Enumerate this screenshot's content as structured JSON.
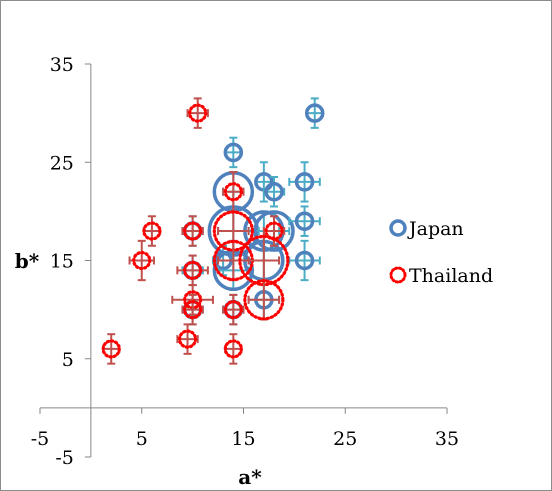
{
  "chart_data": {
    "type": "scatter",
    "xlabel": "a*",
    "ylabel": "b*",
    "xlim": [
      -5,
      35
    ],
    "ylim": [
      -5,
      35
    ],
    "x_ticks": [
      -5,
      5,
      15,
      25,
      35
    ],
    "y_ticks": [
      -5,
      5,
      15,
      25,
      35
    ],
    "x_tick_labels": [
      "-5",
      "5",
      "15",
      "25",
      "35"
    ],
    "y_tick_labels": [
      "-5",
      "5",
      "15",
      "25",
      "35"
    ],
    "grid": false,
    "legend_position": "right",
    "series": [
      {
        "name": "Japan",
        "marker": "circle",
        "line_style": "solid",
        "color": "#4f81bd",
        "errorbar_color": "#4bacc6",
        "points": [
          {
            "x": 22,
            "y": 30,
            "size": 1,
            "xerr": 0.8,
            "yerr": 1.5
          },
          {
            "x": 14,
            "y": 26,
            "size": 1,
            "xerr": 0.8,
            "yerr": 1.5
          },
          {
            "x": 17,
            "y": 23,
            "size": 1,
            "xerr": 0.8,
            "yerr": 2
          },
          {
            "x": 21,
            "y": 23,
            "size": 1,
            "xerr": 1.5,
            "yerr": 2
          },
          {
            "x": 14,
            "y": 22,
            "size": 2,
            "xerr": 1,
            "yerr": 2
          },
          {
            "x": 18,
            "y": 22,
            "size": 1,
            "xerr": 1,
            "yerr": 1.5
          },
          {
            "x": 10,
            "y": 18,
            "size": 1,
            "xerr": 1,
            "yerr": 1.5
          },
          {
            "x": 14,
            "y": 18,
            "size": 3,
            "xerr": 1.5,
            "yerr": 2
          },
          {
            "x": 17,
            "y": 18,
            "size": 2,
            "xerr": 1.5,
            "yerr": 2
          },
          {
            "x": 18,
            "y": 18,
            "size": 2,
            "xerr": 1.5,
            "yerr": 2
          },
          {
            "x": 21,
            "y": 19,
            "size": 1,
            "xerr": 1.5,
            "yerr": 1.5
          },
          {
            "x": 10,
            "y": 14,
            "size": 1,
            "xerr": 1,
            "yerr": 1.5
          },
          {
            "x": 13,
            "y": 15,
            "size": 1,
            "xerr": 1,
            "yerr": 1.5
          },
          {
            "x": 14,
            "y": 14,
            "size": 2,
            "xerr": 1.5,
            "yerr": 2
          },
          {
            "x": 17,
            "y": 15,
            "size": 2,
            "xerr": 1.5,
            "yerr": 2
          },
          {
            "x": 21,
            "y": 15,
            "size": 1,
            "xerr": 1.5,
            "yerr": 2
          },
          {
            "x": 10,
            "y": 10,
            "size": 1,
            "xerr": 1,
            "yerr": 1.5
          },
          {
            "x": 14,
            "y": 10,
            "size": 1,
            "xerr": 1,
            "yerr": 1.5
          },
          {
            "x": 17,
            "y": 11,
            "size": 1,
            "xerr": 1.5,
            "yerr": 2
          }
        ]
      },
      {
        "name": "Thailand",
        "marker": "circle",
        "line_style": "dotted",
        "color": "#ff0000",
        "errorbar_color": "#c0504d",
        "points": [
          {
            "x": 10.5,
            "y": 30,
            "size": 1,
            "xerr": 1,
            "yerr": 1.5
          },
          {
            "x": 14,
            "y": 22,
            "size": 1,
            "xerr": 1,
            "yerr": 2
          },
          {
            "x": 6,
            "y": 18,
            "size": 1,
            "xerr": 0.8,
            "yerr": 1.5
          },
          {
            "x": 10,
            "y": 18,
            "size": 1,
            "xerr": 1,
            "yerr": 1.5
          },
          {
            "x": 14,
            "y": 18,
            "size": 2,
            "xerr": 1.5,
            "yerr": 2
          },
          {
            "x": 18,
            "y": 18,
            "size": 1,
            "xerr": 1,
            "yerr": 1.5
          },
          {
            "x": 5,
            "y": 15,
            "size": 1,
            "xerr": 1.2,
            "yerr": 2
          },
          {
            "x": 10,
            "y": 14,
            "size": 1,
            "xerr": 1.5,
            "yerr": 1.5
          },
          {
            "x": 14,
            "y": 15,
            "size": 2,
            "xerr": 1.5,
            "yerr": 2
          },
          {
            "x": 17,
            "y": 15,
            "size": 3,
            "xerr": 1.5,
            "yerr": 2.5
          },
          {
            "x": 10,
            "y": 11,
            "size": 1,
            "xerr": 2,
            "yerr": 1.5
          },
          {
            "x": 10,
            "y": 10,
            "size": 1,
            "xerr": 1,
            "yerr": 1.5
          },
          {
            "x": 14,
            "y": 10,
            "size": 1,
            "xerr": 1,
            "yerr": 1.5
          },
          {
            "x": 17,
            "y": 11,
            "size": 2,
            "xerr": 1.5,
            "yerr": 2
          },
          {
            "x": 2,
            "y": 6,
            "size": 1,
            "xerr": 0.8,
            "yerr": 1.5
          },
          {
            "x": 9.5,
            "y": 7,
            "size": 1,
            "xerr": 1,
            "yerr": 1.5
          },
          {
            "x": 14,
            "y": 6,
            "size": 1,
            "xerr": 0.8,
            "yerr": 1.5
          }
        ]
      }
    ]
  }
}
